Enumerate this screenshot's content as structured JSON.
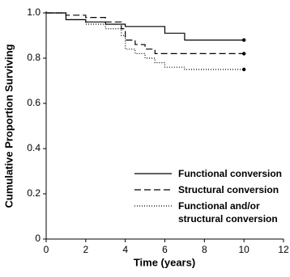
{
  "chart_data": {
    "type": "step",
    "xlabel": "Time (years)",
    "ylabel": "Cumulative Proportion Surviving",
    "xlim": [
      0,
      12
    ],
    "xticks": [
      0,
      2,
      4,
      6,
      8,
      10,
      12
    ],
    "ylim": [
      0,
      1
    ],
    "yticks": [
      {
        "value": 0,
        "label": "0"
      },
      0.2,
      0.4,
      0.6,
      0.8,
      {
        "value": 1,
        "label": "1.0"
      }
    ],
    "legend": "lower right",
    "end_marker": true,
    "series": [
      {
        "name": "Functional conversion",
        "color": "#000000",
        "dash": "solid",
        "x": [
          0,
          1,
          2,
          3,
          4,
          6,
          7,
          10
        ],
        "values": [
          1,
          0.97,
          0.96,
          0.95,
          0.94,
          0.91,
          0.88,
          0.88
        ]
      },
      {
        "name": "Structural conversion",
        "color": "#000000",
        "dash": "dashed",
        "x": [
          0,
          1,
          2,
          3,
          3.8,
          4,
          4.5,
          5,
          5.5,
          10
        ],
        "values": [
          1,
          0.99,
          0.98,
          0.96,
          0.93,
          0.88,
          0.86,
          0.84,
          0.82,
          0.82
        ]
      },
      {
        "name": "Functional and/or structural conversion",
        "color": "#000000",
        "dash": "dotted",
        "x": [
          0,
          1,
          2,
          3,
          3.8,
          4,
          4.5,
          5,
          5.5,
          6,
          7,
          10
        ],
        "values": [
          1,
          0.97,
          0.95,
          0.93,
          0.9,
          0.84,
          0.82,
          0.8,
          0.78,
          0.76,
          0.75,
          0.75
        ]
      }
    ]
  }
}
